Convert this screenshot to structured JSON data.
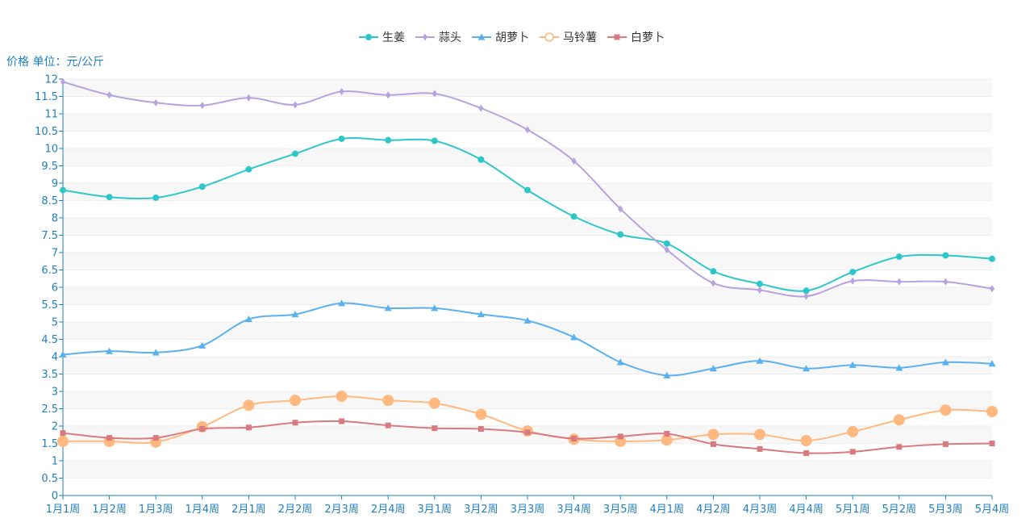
{
  "chart_data": {
    "type": "line",
    "ylabel": "价格 单位：元/公斤",
    "ylim": [
      0,
      12
    ],
    "ystep": 0.5,
    "grid": true,
    "legend_position": "top-center",
    "categories": [
      "1月1周",
      "1月2周",
      "1月3周",
      "1月4周",
      "2月1周",
      "2月2周",
      "2月3周",
      "2月4周",
      "3月1周",
      "3月2周",
      "3月3周",
      "3月4周",
      "3月5周",
      "4月1周",
      "4月2周",
      "4月3周",
      "4月4周",
      "5月1周",
      "5月2周",
      "5月3周",
      "5月4周"
    ],
    "series": [
      {
        "name": "生姜",
        "color": "#2ec7c9",
        "marker": "circle",
        "values": [
          8.8,
          8.6,
          8.58,
          8.9,
          9.4,
          9.85,
          10.28,
          10.24,
          10.22,
          9.68,
          8.8,
          8.04,
          7.52,
          7.26,
          6.46,
          6.1,
          5.9,
          6.44,
          6.88,
          6.92,
          6.82
        ]
      },
      {
        "name": "蒜头",
        "color": "#b6a2de",
        "marker": "diamond",
        "values": [
          11.92,
          11.54,
          11.32,
          11.24,
          11.46,
          11.26,
          11.64,
          11.54,
          11.58,
          11.16,
          10.54,
          9.64,
          8.26,
          7.08,
          6.12,
          5.92,
          5.74,
          6.18,
          6.16,
          6.16,
          5.96
        ]
      },
      {
        "name": "胡萝卜",
        "color": "#5ab1ef",
        "marker": "triangle",
        "values": [
          4.06,
          4.16,
          4.12,
          4.32,
          5.08,
          5.22,
          5.54,
          5.4,
          5.4,
          5.22,
          5.04,
          4.56,
          3.84,
          3.46,
          3.66,
          3.88,
          3.66,
          3.76,
          3.68,
          3.84,
          3.8
        ]
      },
      {
        "name": "马铃薯",
        "color": "#ffb980",
        "marker": "empty-circle",
        "values": [
          1.56,
          1.56,
          1.54,
          1.98,
          2.6,
          2.74,
          2.86,
          2.74,
          2.66,
          2.34,
          1.86,
          1.62,
          1.56,
          1.6,
          1.76,
          1.76,
          1.58,
          1.84,
          2.18,
          2.46,
          2.42
        ]
      },
      {
        "name": "白萝卜",
        "color": "#d87a80",
        "marker": "square",
        "values": [
          1.8,
          1.66,
          1.66,
          1.92,
          1.96,
          2.1,
          2.14,
          2.02,
          1.94,
          1.92,
          1.82,
          1.64,
          1.7,
          1.78,
          1.48,
          1.34,
          1.22,
          1.26,
          1.4,
          1.48,
          1.5
        ]
      }
    ]
  }
}
